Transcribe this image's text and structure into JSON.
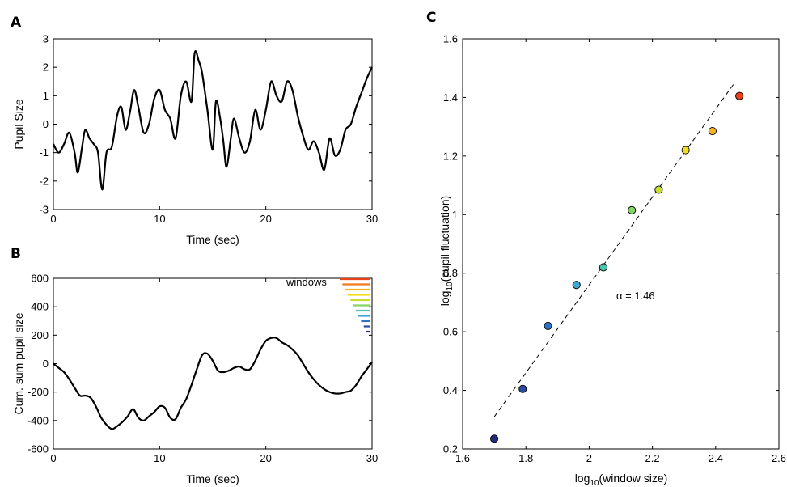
{
  "panels": {
    "A": {
      "letter": "A"
    },
    "B": {
      "letter": "B"
    },
    "C": {
      "letter": "C"
    }
  },
  "chart_data": [
    {
      "id": "A",
      "type": "line",
      "xlabel": "Time (sec)",
      "ylabel": "Pupil Size",
      "xlim": [
        0,
        30
      ],
      "ylim": [
        -3,
        3
      ],
      "xticks": [
        0,
        10,
        20,
        30
      ],
      "yticks": [
        -3,
        -2,
        -1,
        0,
        1,
        2,
        3
      ],
      "grid": false,
      "series": [
        {
          "color": "#000000",
          "x": [
            0,
            0.5,
            1,
            1.5,
            2,
            2.3,
            2.7,
            3,
            3.4,
            3.8,
            4.2,
            4.6,
            5,
            5.5,
            6,
            6.4,
            6.8,
            7.2,
            7.6,
            8,
            8.5,
            9,
            9.5,
            10,
            10.5,
            11,
            11.5,
            12,
            12.5,
            13,
            13.3,
            13.7,
            14,
            14.5,
            15,
            15.3,
            15.7,
            16,
            16.3,
            16.7,
            17,
            17.5,
            18,
            18.5,
            19,
            19.5,
            20,
            20.5,
            21,
            21.5,
            22,
            22.5,
            23,
            23.5,
            24,
            24.5,
            25,
            25.5,
            26,
            26.5,
            27,
            27.5,
            28,
            28.5,
            29,
            29.5,
            30
          ],
          "values": [
            -0.7,
            -1.0,
            -0.7,
            -0.3,
            -1.0,
            -1.7,
            -0.8,
            -0.2,
            -0.5,
            -0.7,
            -1.0,
            -2.3,
            -1.0,
            -0.8,
            0.3,
            0.6,
            -0.2,
            0.4,
            1.2,
            0.6,
            -0.3,
            0.0,
            0.9,
            1.2,
            0.5,
            0.2,
            -0.5,
            1.0,
            1.5,
            0.8,
            2.5,
            2.2,
            1.8,
            0.5,
            -0.9,
            0.8,
            0.2,
            -0.6,
            -1.5,
            -0.5,
            0.2,
            -0.5,
            -1.0,
            -0.6,
            0.5,
            -0.2,
            0.5,
            1.5,
            1.0,
            0.8,
            1.5,
            1.2,
            0.3,
            -0.4,
            -0.9,
            -0.6,
            -1.0,
            -1.6,
            -0.5,
            -1.1,
            -0.9,
            -0.2,
            0.0,
            0.6,
            1.1,
            1.6,
            2.0
          ]
        }
      ]
    },
    {
      "id": "B",
      "type": "line",
      "xlabel": "Time (sec)",
      "ylabel": "Cum. sum pupil size",
      "xlim": [
        0,
        30
      ],
      "ylim": [
        -600,
        600
      ],
      "xticks": [
        0,
        10,
        20,
        30
      ],
      "yticks": [
        -600,
        -400,
        -200,
        0,
        200,
        400,
        600
      ],
      "grid": false,
      "legend_label": "windows",
      "legend_placement": "top-right",
      "window_colors": [
        "#e8421a",
        "#f07a1f",
        "#f7b21e",
        "#f3de1e",
        "#c8dd31",
        "#86d367",
        "#4fc3ae",
        "#3fa7d6",
        "#2f74c4",
        "#2b4c9e",
        "#262c7d"
      ],
      "series": [
        {
          "color": "#000000",
          "x": [
            0,
            0.5,
            1,
            1.5,
            2,
            2.5,
            3,
            3.5,
            4,
            4.5,
            5,
            5.5,
            6,
            6.5,
            7,
            7.5,
            8,
            8.5,
            9,
            9.5,
            10,
            10.5,
            11,
            11.5,
            12,
            12.5,
            13,
            13.5,
            14,
            14.5,
            15,
            15.5,
            16,
            16.5,
            17,
            17.5,
            18,
            18.5,
            19,
            19.5,
            20,
            20.5,
            21,
            21.5,
            22,
            22.5,
            23,
            23.5,
            24,
            24.5,
            25,
            25.5,
            26,
            26.5,
            27,
            27.5,
            28,
            28.5,
            29,
            29.5,
            30
          ],
          "values": [
            0,
            -30,
            -60,
            -110,
            -170,
            -225,
            -225,
            -240,
            -300,
            -380,
            -430,
            -460,
            -440,
            -410,
            -370,
            -320,
            -380,
            -400,
            -370,
            -340,
            -300,
            -310,
            -380,
            -390,
            -310,
            -250,
            -150,
            -40,
            60,
            70,
            20,
            -50,
            -60,
            -50,
            -30,
            -20,
            -40,
            -40,
            20,
            100,
            160,
            180,
            180,
            150,
            130,
            100,
            60,
            0,
            -60,
            -110,
            -150,
            -180,
            -200,
            -210,
            -210,
            -200,
            -190,
            -150,
            -90,
            -40,
            10
          ]
        }
      ]
    },
    {
      "id": "C",
      "type": "scatter",
      "xlabel": "log10(window size)",
      "ylabel": "log10(pupil fluctuation)",
      "xlim": [
        1.6,
        2.6
      ],
      "ylim": [
        0.2,
        1.6
      ],
      "xticks": [
        1.6,
        1.8,
        2,
        2.2,
        2.4,
        2.6
      ],
      "yticks": [
        0.2,
        0.4,
        0.6,
        0.8,
        1,
        1.2,
        1.4,
        1.6
      ],
      "grid": false,
      "annotation": "α = 1.46",
      "fit_line": {
        "x": [
          1.7,
          2.46
        ],
        "y": [
          0.31,
          1.45
        ],
        "style": "dashed"
      },
      "points": [
        {
          "x": 1.7,
          "y": 0.235,
          "color": "#262c7d"
        },
        {
          "x": 1.79,
          "y": 0.405,
          "color": "#2b4c9e"
        },
        {
          "x": 1.87,
          "y": 0.62,
          "color": "#2f74c4"
        },
        {
          "x": 1.96,
          "y": 0.76,
          "color": "#3fa7d6"
        },
        {
          "x": 2.045,
          "y": 0.82,
          "color": "#4fc3ae"
        },
        {
          "x": 2.135,
          "y": 1.015,
          "color": "#86d367"
        },
        {
          "x": 2.22,
          "y": 1.085,
          "color": "#c8dd31"
        },
        {
          "x": 2.305,
          "y": 1.22,
          "color": "#f3de1e"
        },
        {
          "x": 2.39,
          "y": 1.285,
          "color": "#f7b21e"
        },
        {
          "x": 2.475,
          "y": 1.405,
          "color": "#e8421a"
        }
      ]
    }
  ]
}
